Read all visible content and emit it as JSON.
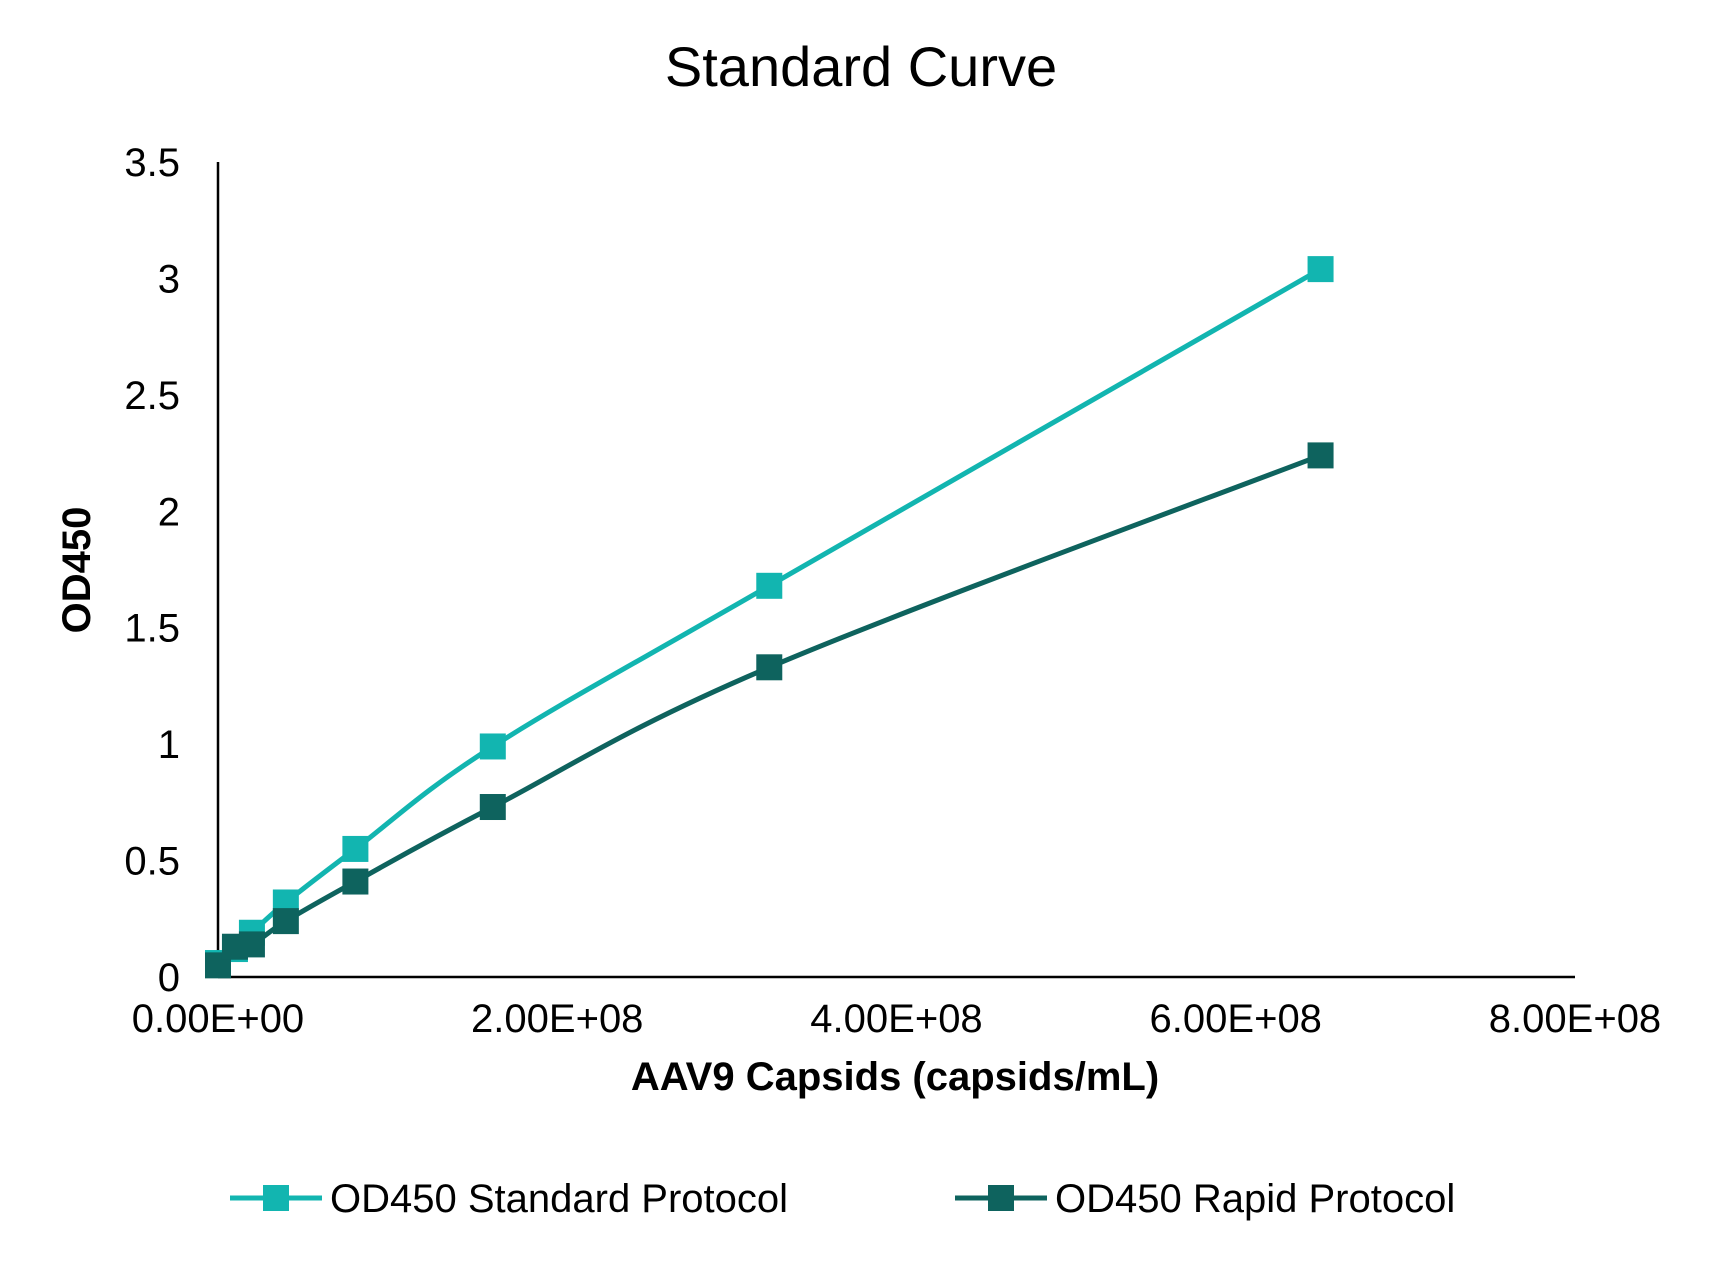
{
  "chart_data": {
    "type": "line",
    "title": "Standard Curve",
    "xlabel": "AAV9 Capsids (capsids/mL)",
    "ylabel": "OD450",
    "xlim": [
      0,
      800000000
    ],
    "ylim": [
      0,
      3.5
    ],
    "x_ticks": [
      0,
      200000000,
      400000000,
      600000000,
      800000000
    ],
    "x_tick_labels": [
      "0.00E+00",
      "2.00E+08",
      "4.00E+08",
      "6.00E+08",
      "8.00E+08"
    ],
    "y_ticks": [
      0,
      0.5,
      1,
      1.5,
      2,
      2.5,
      3,
      3.5
    ],
    "y_tick_labels": [
      "0",
      "0.5",
      "1",
      "1.5",
      "2",
      "2.5",
      "3",
      "3.5"
    ],
    "grid": false,
    "legend_position": "bottom",
    "x": [
      0,
      10000000,
      20000000,
      40000000,
      81000000,
      162000000,
      325000000,
      650000000
    ],
    "series": [
      {
        "name": "OD450 Standard Protocol",
        "color": "#12b5b0",
        "values": [
          0.06,
          0.12,
          0.19,
          0.32,
          0.55,
          0.99,
          1.68,
          3.04
        ]
      },
      {
        "name": "OD450 Rapid Protocol",
        "color": "#0e635e",
        "values": [
          0.05,
          0.13,
          0.14,
          0.24,
          0.41,
          0.73,
          1.33,
          2.24
        ]
      }
    ]
  }
}
